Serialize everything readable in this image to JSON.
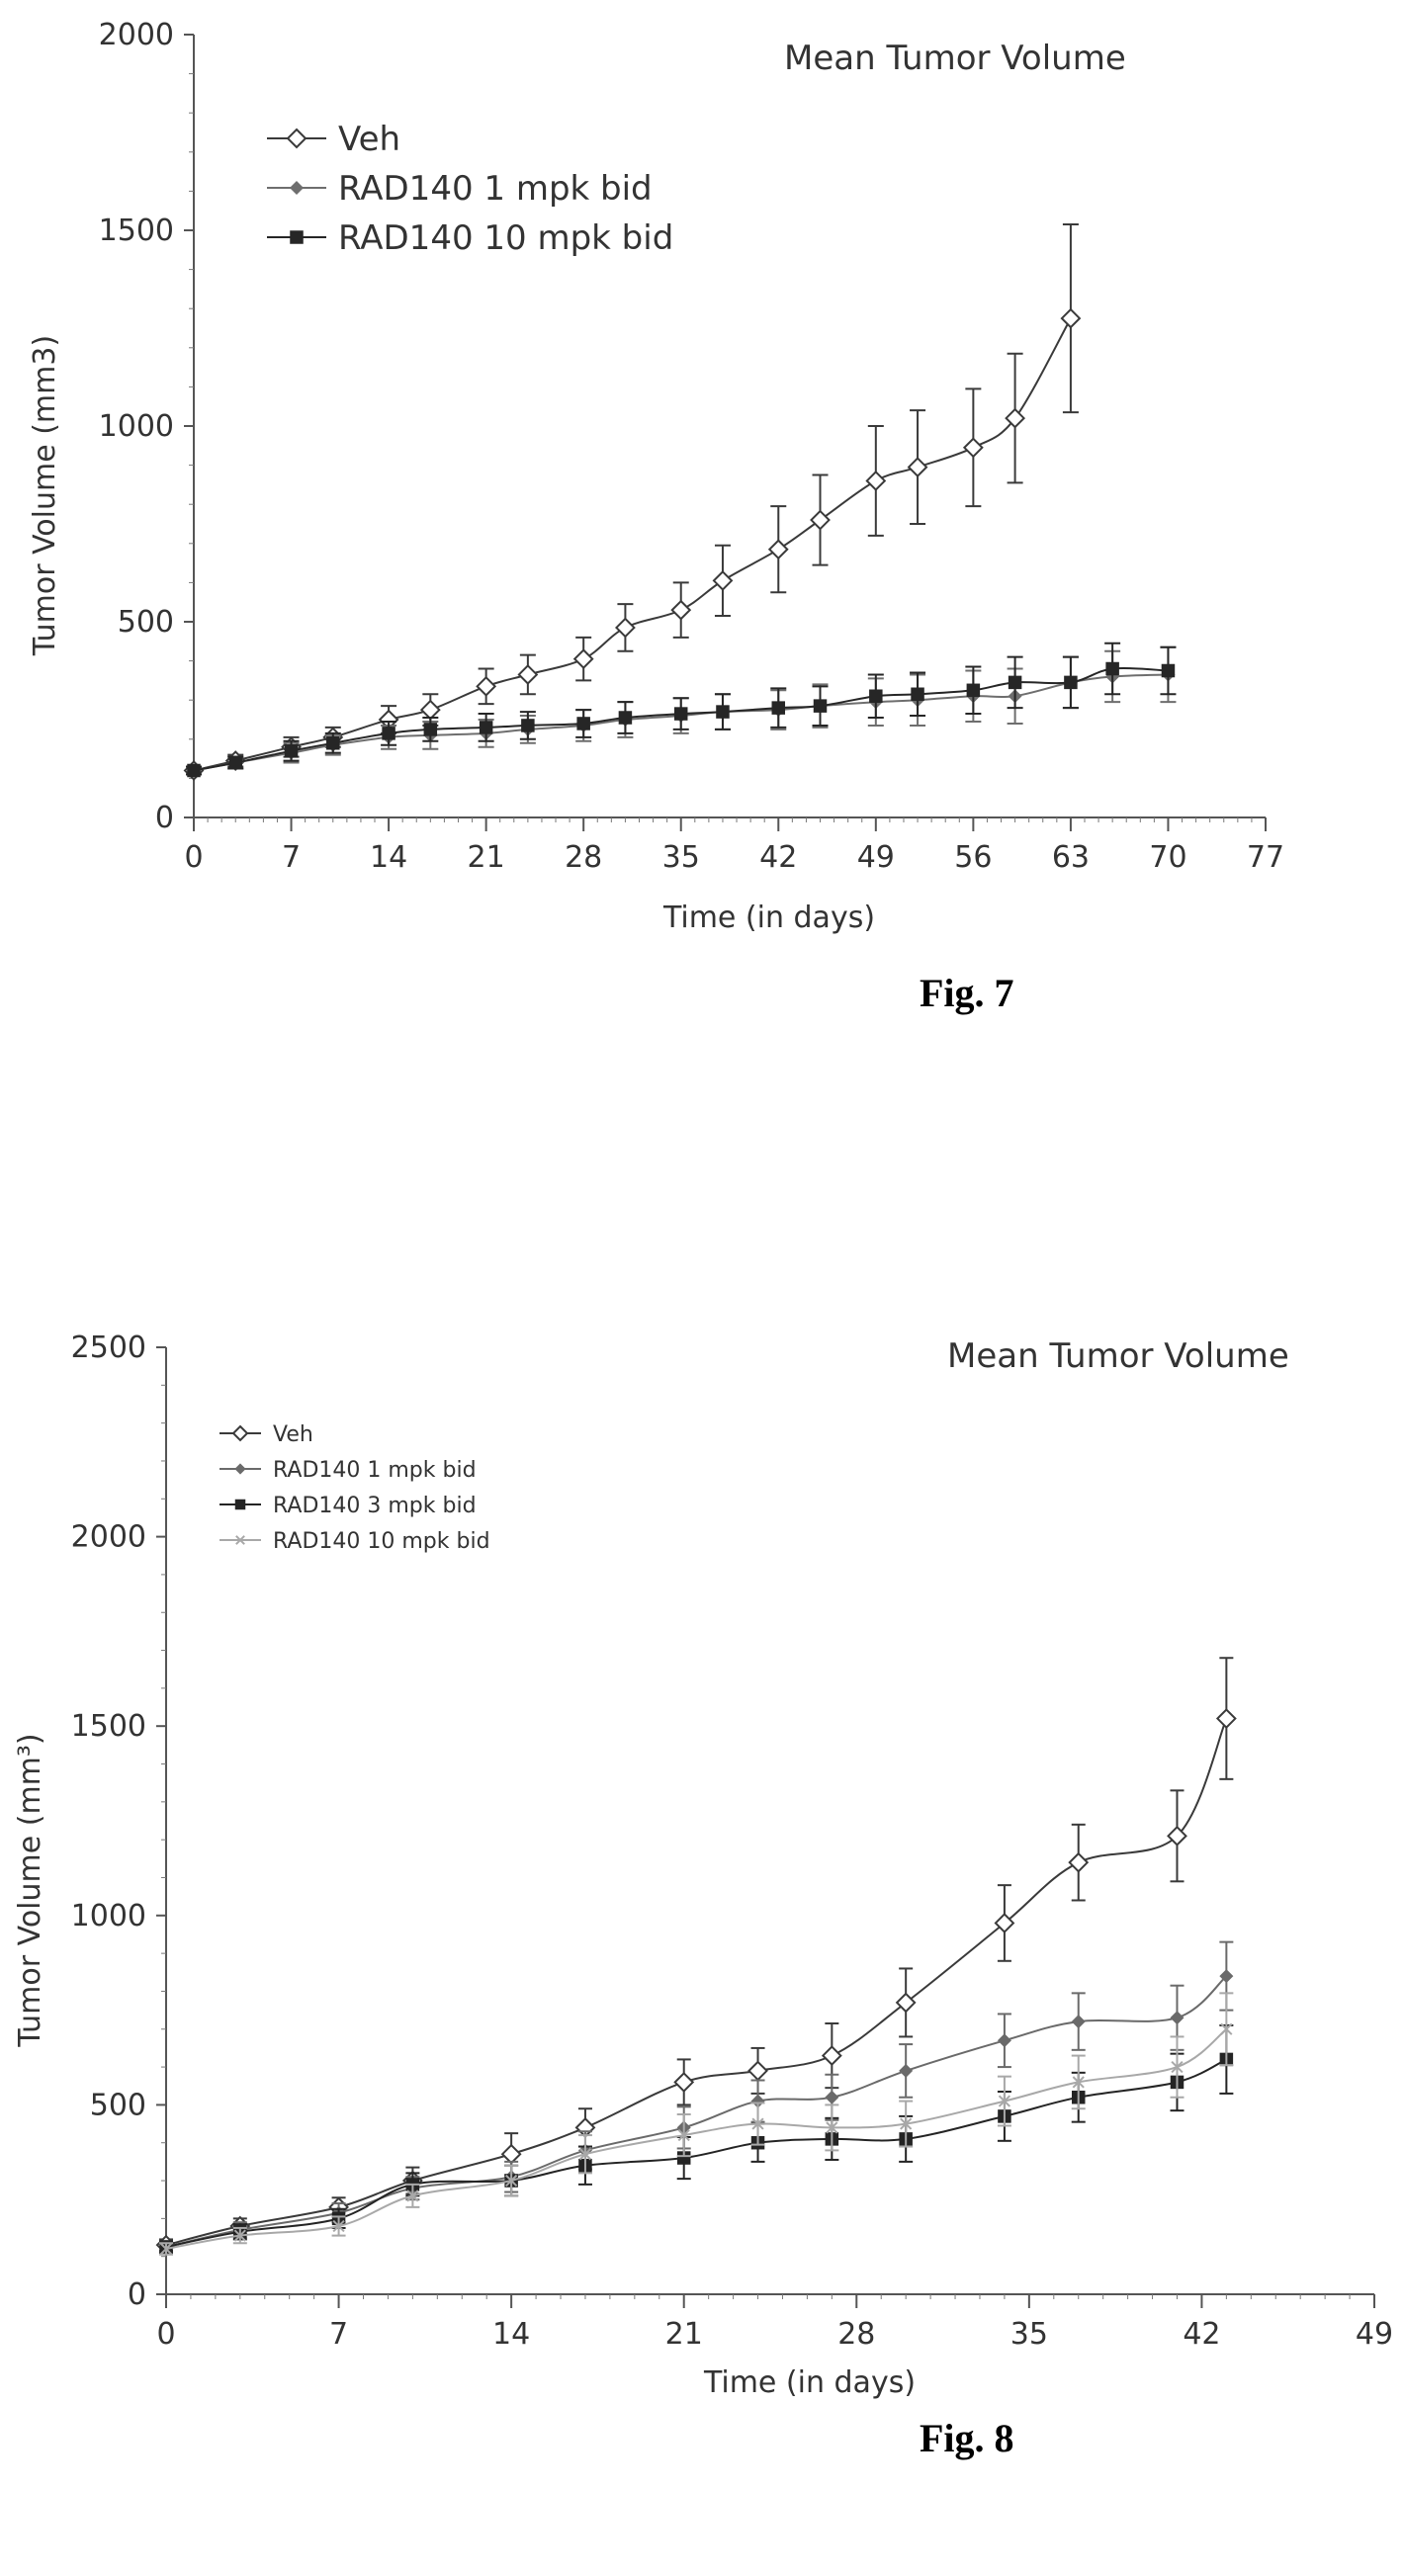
{
  "figures": [
    {
      "caption": "Fig. 7"
    },
    {
      "caption": "Fig. 8"
    }
  ],
  "chart_data": [
    {
      "type": "line",
      "title": "Mean Tumor Volume",
      "xlabel": "Time (in days)",
      "ylabel": "Tumor Volume (mm3)",
      "xlim": [
        0,
        77
      ],
      "ylim": [
        0,
        2000
      ],
      "xticks": [
        0,
        7,
        14,
        21,
        28,
        35,
        42,
        49,
        56,
        63,
        70,
        77
      ],
      "yticks": [
        0,
        500,
        1000,
        1500,
        2000
      ],
      "legend_position": "top-left",
      "error_bars": true,
      "series": [
        {
          "name": "Veh",
          "marker": "open-diamond",
          "x": [
            0,
            3,
            7,
            10,
            14,
            17,
            21,
            24,
            28,
            31,
            35,
            38,
            42,
            45,
            49,
            52,
            56,
            59,
            63
          ],
          "y": [
            120,
            145,
            180,
            205,
            250,
            275,
            335,
            365,
            405,
            485,
            530,
            605,
            685,
            760,
            860,
            895,
            945,
            1020,
            1275
          ],
          "err": [
            10,
            15,
            25,
            25,
            35,
            40,
            45,
            50,
            55,
            60,
            70,
            90,
            110,
            115,
            140,
            145,
            150,
            165,
            240
          ]
        },
        {
          "name": "RAD140 1 mpk bid",
          "marker": "small-diamond",
          "x": [
            0,
            3,
            7,
            10,
            14,
            17,
            21,
            24,
            28,
            31,
            35,
            38,
            42,
            45,
            49,
            52,
            56,
            59,
            63,
            66,
            70
          ],
          "y": [
            120,
            140,
            165,
            185,
            205,
            210,
            215,
            225,
            235,
            250,
            260,
            270,
            275,
            285,
            295,
            300,
            310,
            310,
            345,
            360,
            365
          ],
          "err": [
            10,
            15,
            25,
            25,
            30,
            35,
            35,
            35,
            40,
            45,
            45,
            45,
            50,
            55,
            60,
            65,
            65,
            70,
            65,
            65,
            70
          ]
        },
        {
          "name": "RAD140 10 mpk bid",
          "marker": "filled-square",
          "x": [
            0,
            3,
            7,
            10,
            14,
            17,
            21,
            24,
            28,
            31,
            35,
            38,
            42,
            45,
            49,
            52,
            56,
            59,
            63,
            66,
            70
          ],
          "y": [
            120,
            140,
            170,
            190,
            215,
            225,
            230,
            235,
            240,
            255,
            265,
            270,
            280,
            285,
            310,
            315,
            325,
            345,
            345,
            380,
            375
          ],
          "err": [
            10,
            15,
            25,
            25,
            30,
            30,
            35,
            35,
            35,
            40,
            40,
            45,
            50,
            50,
            55,
            55,
            60,
            65,
            65,
            65,
            60
          ]
        }
      ]
    },
    {
      "type": "line",
      "title": "Mean Tumor Volume",
      "xlabel": "Time (in days)",
      "ylabel": "Tumor Volume (mm³)",
      "xlim": [
        0,
        49
      ],
      "ylim": [
        0,
        2500
      ],
      "xticks": [
        0,
        7,
        14,
        21,
        28,
        35,
        42,
        49
      ],
      "yticks": [
        0,
        500,
        1000,
        1500,
        2000,
        2500
      ],
      "legend_position": "top-left",
      "error_bars": true,
      "series": [
        {
          "name": "Veh",
          "marker": "open-diamond",
          "x": [
            0,
            3,
            7,
            10,
            14,
            17,
            21,
            24,
            27,
            30,
            34,
            37,
            41,
            43
          ],
          "y": [
            130,
            180,
            230,
            300,
            370,
            440,
            560,
            590,
            630,
            770,
            980,
            1140,
            1210,
            1520
          ],
          "err": [
            15,
            20,
            25,
            35,
            55,
            50,
            60,
            60,
            85,
            90,
            100,
            100,
            120,
            160
          ]
        },
        {
          "name": "RAD140 1 mpk bid",
          "marker": "small-diamond",
          "x": [
            0,
            3,
            7,
            10,
            14,
            17,
            21,
            24,
            27,
            30,
            34,
            37,
            41,
            43
          ],
          "y": [
            125,
            170,
            215,
            280,
            310,
            380,
            440,
            510,
            520,
            590,
            670,
            720,
            730,
            840
          ],
          "err": [
            15,
            20,
            25,
            30,
            40,
            50,
            55,
            55,
            60,
            70,
            70,
            75,
            85,
            90
          ]
        },
        {
          "name": "RAD140 3 mpk bid",
          "marker": "filled-square",
          "x": [
            0,
            3,
            7,
            10,
            14,
            17,
            21,
            24,
            27,
            30,
            34,
            37,
            41,
            43
          ],
          "y": [
            125,
            165,
            200,
            290,
            300,
            340,
            360,
            400,
            410,
            410,
            470,
            520,
            560,
            620
          ],
          "err": [
            15,
            20,
            25,
            30,
            40,
            50,
            55,
            50,
            55,
            60,
            65,
            65,
            75,
            90
          ]
        },
        {
          "name": "RAD140 10 mpk bid",
          "marker": "small-x",
          "x": [
            0,
            3,
            7,
            10,
            14,
            17,
            21,
            24,
            27,
            30,
            34,
            37,
            41,
            43
          ],
          "y": [
            120,
            155,
            180,
            260,
            300,
            370,
            420,
            450,
            440,
            450,
            510,
            560,
            600,
            700
          ],
          "err": [
            15,
            20,
            25,
            30,
            40,
            50,
            55,
            55,
            60,
            60,
            65,
            70,
            80,
            95
          ]
        }
      ]
    }
  ]
}
